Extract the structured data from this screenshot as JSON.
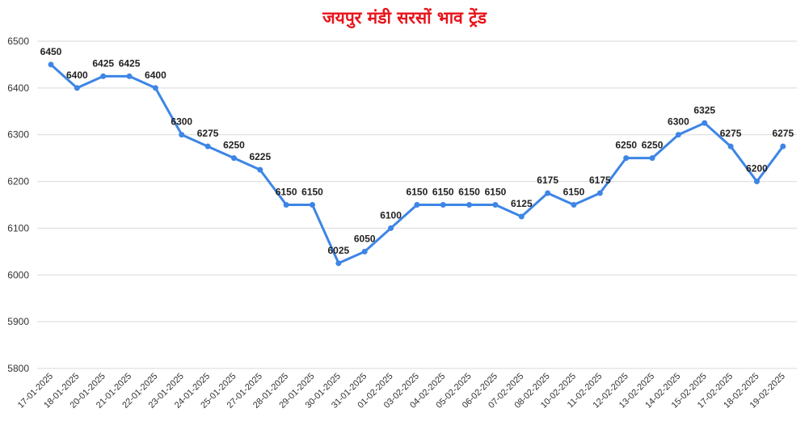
{
  "chart_data": {
    "type": "line",
    "title": "जयपुर मंडी सरसों भाव ट्रेंड",
    "xlabel": "",
    "ylabel": "",
    "ylim": [
      5800,
      6500
    ],
    "yticks": [
      5800,
      5900,
      6000,
      6100,
      6200,
      6300,
      6400,
      6500
    ],
    "grid": true,
    "line_color": "#3d85e6",
    "title_color": "#e8141b",
    "categories": [
      "17-01-2025",
      "18-01-2025",
      "20-01-2025",
      "21-01-2025",
      "22-01-2025",
      "23-01-2025",
      "24-01-2025",
      "25-01-2025",
      "27-01-2025",
      "28-01-2025",
      "29-01-2025",
      "30-01-2025",
      "31-01-2025",
      "01-02-2025",
      "03-02-2025",
      "04-02-2025",
      "05-02-2025",
      "06-02-2025",
      "07-02-2025",
      "08-02-2025",
      "10-02-2025",
      "11-02-2025",
      "12-02-2025",
      "13-02-2025",
      "14-02-2025",
      "15-02-2025",
      "17-02-2025",
      "18-02-2025",
      "19-02-2025"
    ],
    "series": [
      {
        "values": [
          6450,
          6400,
          6425,
          6425,
          6400,
          6300,
          6275,
          6250,
          6225,
          6150,
          6150,
          6025,
          6050,
          6100,
          6150,
          6150,
          6150,
          6150,
          6125,
          6175,
          6150,
          6175,
          6250,
          6250,
          6300,
          6325,
          6275,
          6200,
          6275
        ]
      }
    ]
  }
}
